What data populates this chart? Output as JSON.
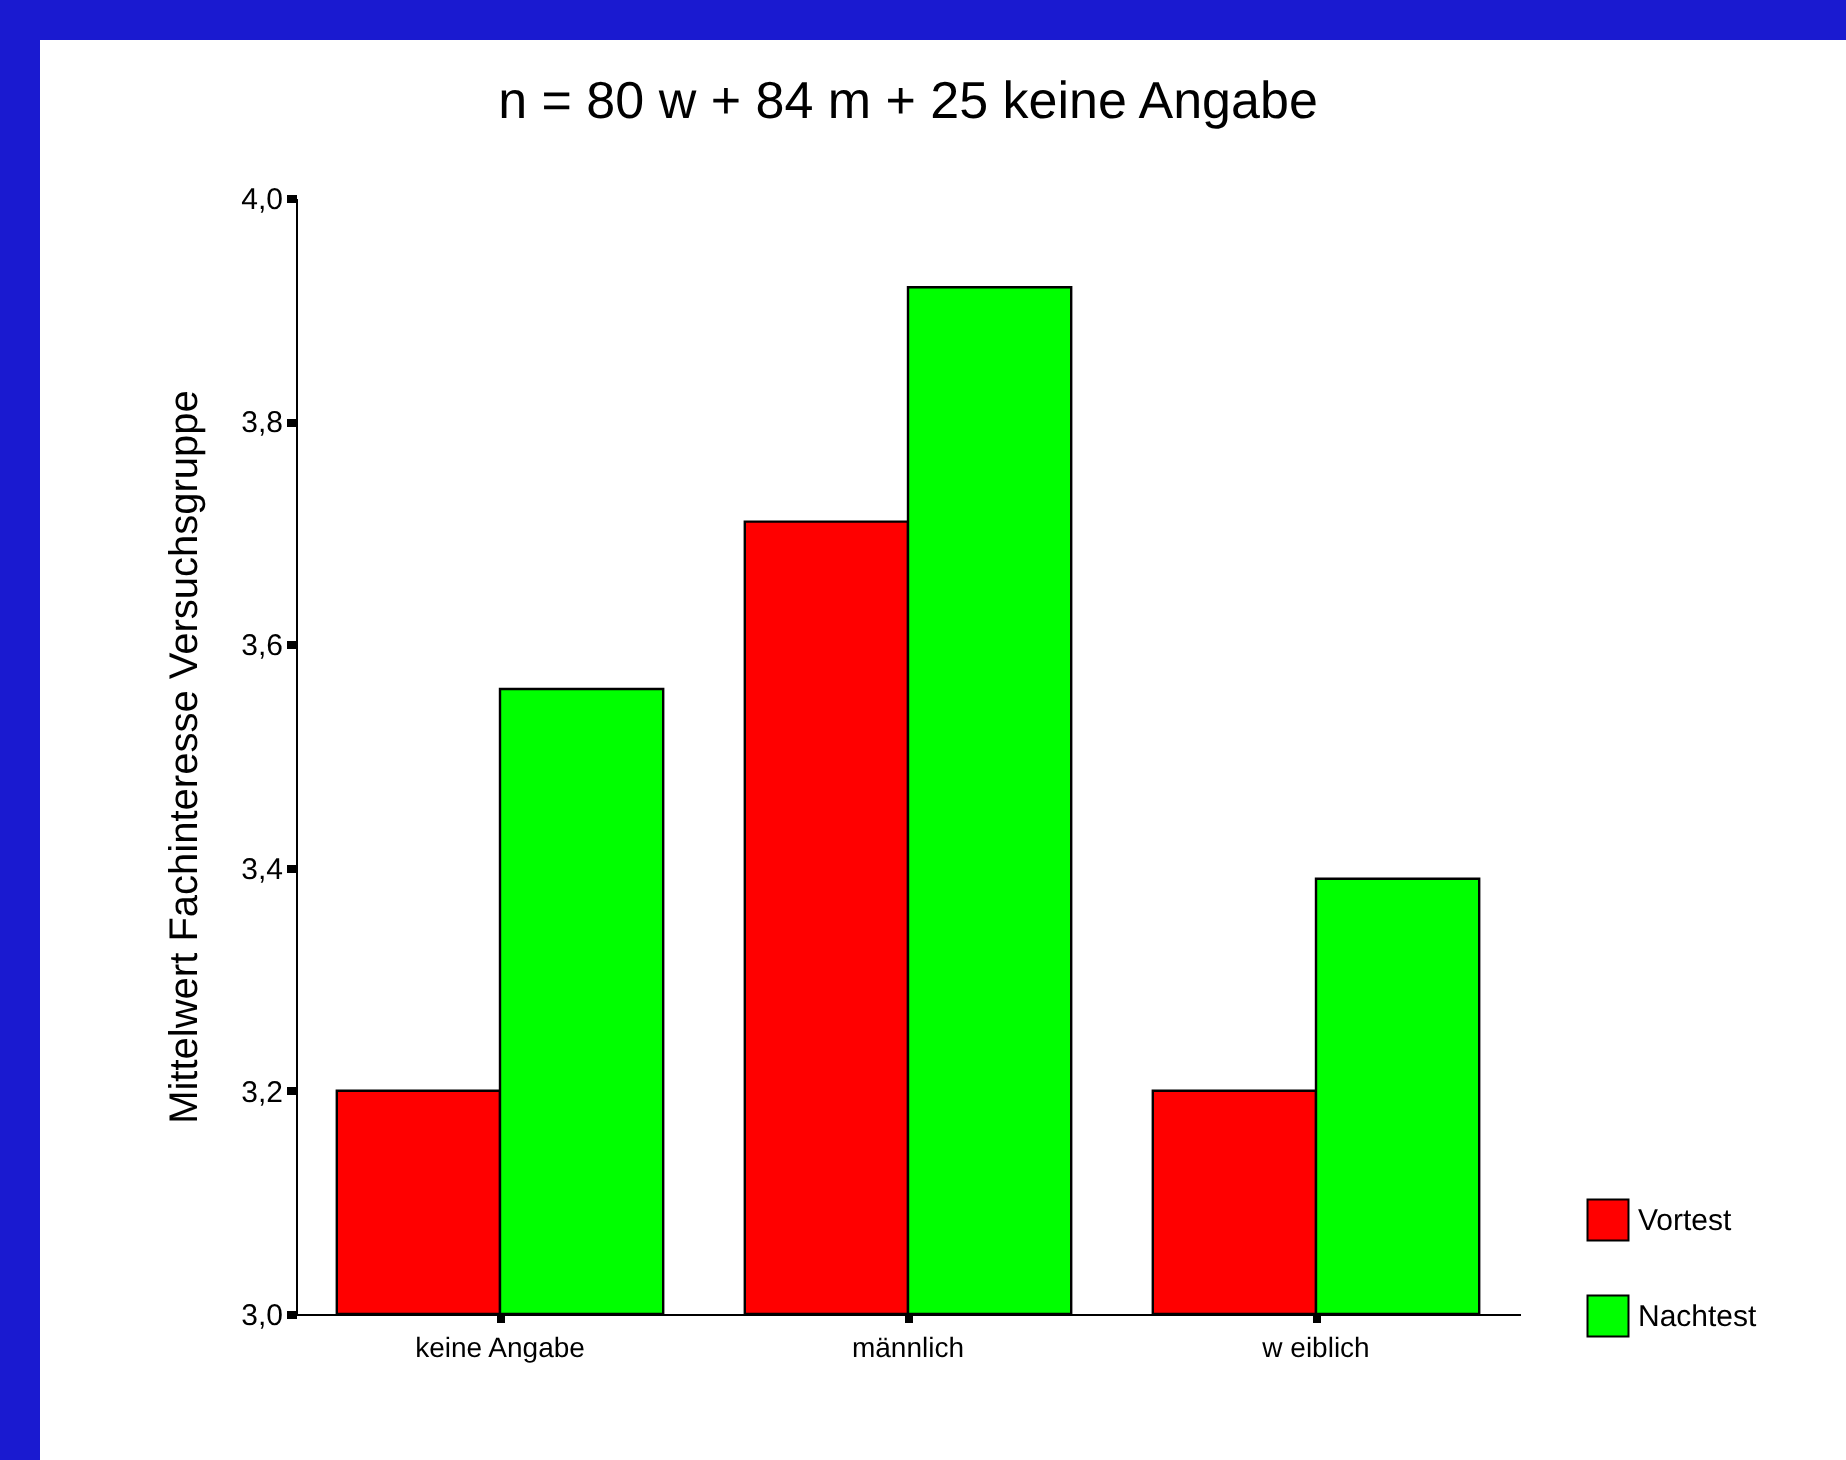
{
  "chart_data": {
    "type": "bar",
    "title": "n = 80 w + 84 m + 25 keine Angabe",
    "ylabel": "Mittelwert Fachinteresse  Versuchsgruppe",
    "categories": [
      "keine Angabe",
      "männlich",
      "w eiblich"
    ],
    "series": [
      {
        "name": "Vortest",
        "color": "#ff0000",
        "values": [
          3.2,
          3.71,
          3.2
        ]
      },
      {
        "name": "Nachtest",
        "color": "#00ff00",
        "values": [
          3.56,
          3.92,
          3.39
        ]
      }
    ],
    "ylim": [
      3.0,
      4.0
    ],
    "yticks": [
      {
        "value": 3.0,
        "label": "3,0"
      },
      {
        "value": 3.2,
        "label": "3,2"
      },
      {
        "value": 3.4,
        "label": "3,4"
      },
      {
        "value": 3.6,
        "label": "3,6"
      },
      {
        "value": 3.8,
        "label": "3,8"
      },
      {
        "value": 4.0,
        "label": "4,0"
      }
    ],
    "grid": false,
    "legend": "bottom right"
  }
}
